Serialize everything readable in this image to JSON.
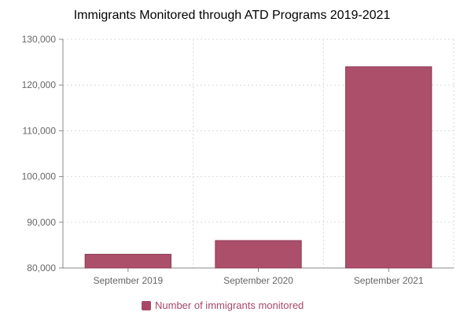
{
  "chart_data": {
    "type": "bar",
    "title": "Immigrants Monitored through ATD Programs 2019-2021",
    "categories": [
      "September 2019",
      "September 2020",
      "September 2021"
    ],
    "series": [
      {
        "name": "Number of immigrants monitored",
        "values": [
          83000,
          86000,
          124000
        ]
      }
    ],
    "ylim": [
      80000,
      130000
    ],
    "yticks": [
      "80,000",
      "90,000",
      "100,000",
      "110,000",
      "120,000",
      "130,000"
    ],
    "grid": true,
    "legend_position": "bottom",
    "colors": {
      "bar": "#ab4f6b",
      "bar_border": "#8f3d57",
      "legend_text": "#a74866",
      "grid": "#d9d9d9",
      "axis": "#888888",
      "tick_text": "#666666"
    }
  }
}
